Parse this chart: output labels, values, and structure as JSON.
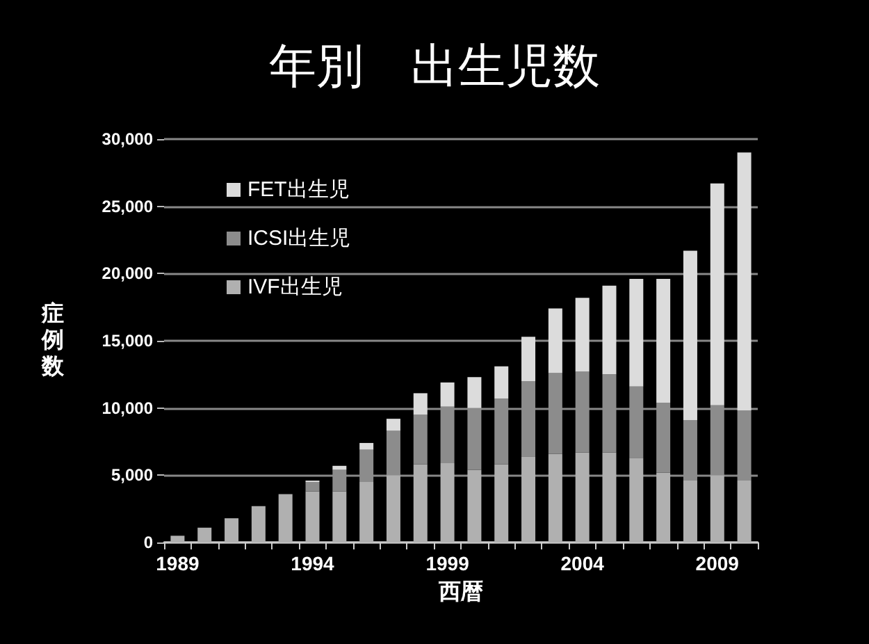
{
  "chart_data": {
    "type": "bar",
    "title": "年別　出生児数",
    "xlabel": "西暦",
    "ylabel": "症例数",
    "categories": [
      "1989",
      null,
      null,
      null,
      null,
      "1994",
      null,
      null,
      null,
      null,
      "1999",
      null,
      null,
      null,
      null,
      "2004",
      null,
      null,
      null,
      null,
      "2009",
      null
    ],
    "stacked": true,
    "series": [
      {
        "name": "IVF出生児",
        "color": "#b0b0b0",
        "values": [
          500,
          1100,
          1800,
          2700,
          3600,
          3800,
          3800,
          4500,
          5000,
          5800,
          5900,
          5400,
          5800,
          6400,
          6600,
          6700,
          6700,
          6300,
          5200,
          4600,
          5000,
          4600
        ]
      },
      {
        "name": "ICSI出生児",
        "color": "#8c8c8c",
        "values": [
          0,
          0,
          0,
          0,
          0,
          700,
          1600,
          2400,
          3300,
          3700,
          4200,
          4600,
          4900,
          5600,
          6000,
          6000,
          5800,
          5300,
          5200,
          4500,
          5200,
          5200
        ]
      },
      {
        "name": "FET出生児",
        "color": "#dcdcdc",
        "values": [
          0,
          0,
          0,
          0,
          0,
          100,
          300,
          500,
          900,
          1600,
          1800,
          2300,
          2400,
          3300,
          4800,
          5500,
          6600,
          8000,
          9200,
          12600,
          16500,
          19200
        ]
      }
    ],
    "ylim": [
      0,
      30000
    ],
    "yticks": [
      0,
      {
        "value": 5000,
        "label": "5,000"
      },
      {
        "value": 10000,
        "label": "10,000"
      },
      {
        "value": 15000,
        "label": "15,000"
      },
      {
        "value": 20000,
        "label": "20,000"
      },
      {
        "value": 25000,
        "label": "25,000"
      },
      {
        "value": 30000,
        "label": "30,000"
      }
    ],
    "grid": "y",
    "legend": "top left"
  }
}
